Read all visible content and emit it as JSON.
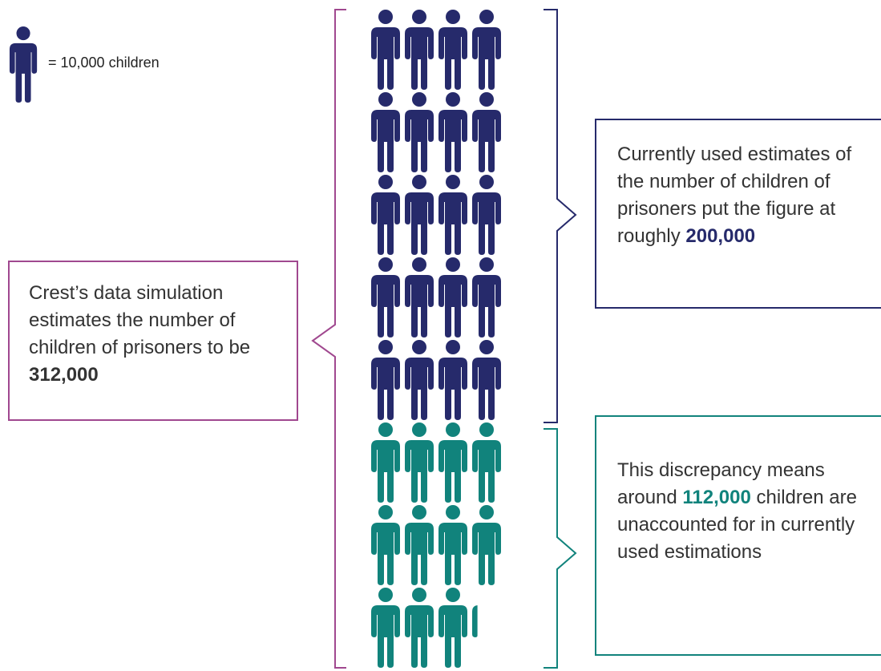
{
  "chart_data": {
    "type": "pictogram",
    "legend_label": "= 10,000 children",
    "unit": 10000,
    "series": [
      {
        "color": "#262a6b",
        "values": [
          200000
        ],
        "value_labels": [
          "200,000"
        ]
      },
      {
        "color": "#11837c",
        "values": [
          112000
        ],
        "value_labels": [
          "112,000"
        ]
      }
    ],
    "total_color": "#a0488f",
    "annotations": [
      {
        "text": "Crest’s data simulation estimates the number of children of prisoners to be ",
        "emphasis": "312,000"
      },
      {
        "text": "Currently used estimates of the number of children of prisoners put the figure at roughly "
      },
      {
        "text": "This discrepancy means around ",
        "after": " children are unaccounted for in currently used estimations"
      }
    ]
  }
}
